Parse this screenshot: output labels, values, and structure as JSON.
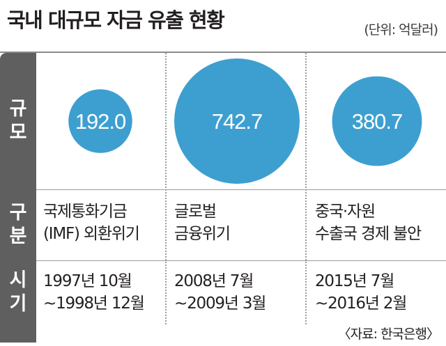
{
  "title": "국내 대규모 자금 유출 현황",
  "unit": "(단위: 억달러)",
  "row_labels": {
    "scale": [
      "규",
      "모"
    ],
    "category": [
      "구",
      "분"
    ],
    "period": [
      "시",
      "기"
    ]
  },
  "columns": [
    {
      "value_label": "192.0",
      "category_lines": [
        "국제통화기금",
        "(IMF) 외환위기"
      ],
      "period_lines": [
        "1997년 10월",
        "~1998년 12월"
      ]
    },
    {
      "value_label": "742.7",
      "category_lines": [
        "글로벌",
        "금융위기"
      ],
      "period_lines": [
        "2008년 7월",
        "~2009년 3월"
      ]
    },
    {
      "value_label": "380.7",
      "category_lines": [
        "중국·자원",
        "수출국 경제 불안"
      ],
      "period_lines": [
        "2015년 7월",
        "~2016년 2월"
      ]
    }
  ],
  "source": "〈자료: 한국은행〉",
  "colors": {
    "bubble": "#3d9fd0",
    "sidebar": "#5f5f5f"
  },
  "chart_data": {
    "type": "bubble",
    "categories": [
      "국제통화기금 (IMF) 외환위기",
      "글로벌 금융위기",
      "중국·자원 수출국 경제 불안"
    ],
    "values": [
      192.0,
      742.7,
      380.7
    ],
    "title": "국내 대규모 자금 유출 현황",
    "unit": "억달러"
  }
}
